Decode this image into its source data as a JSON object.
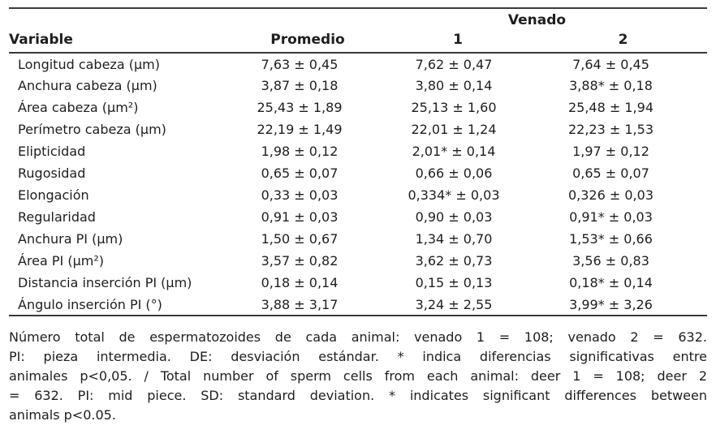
{
  "table": {
    "group_header": "Venado",
    "columns": {
      "variable": "Variable",
      "promedio": "Promedio",
      "venado1": "1",
      "venado2": "2"
    },
    "rows": [
      {
        "variable": "Longitud cabeza (μm)",
        "promedio": "7,63 ± 0,45",
        "venado1": "7,62 ± 0,47",
        "venado2": "7,64 ± 0,45"
      },
      {
        "variable": "Anchura cabeza (μm)",
        "promedio": "3,87 ± 0,18",
        "venado1": "3,80 ± 0,14",
        "venado2": "3,88* ± 0,18"
      },
      {
        "variable": "Área cabeza (μm²)",
        "promedio": "25,43 ± 1,89",
        "venado1": "25,13 ± 1,60",
        "venado2": "25,48 ± 1,94"
      },
      {
        "variable": "Perímetro cabeza (μm)",
        "promedio": "22,19 ± 1,49",
        "venado1": "22,01 ± 1,24",
        "venado2": "22,23 ± 1,53"
      },
      {
        "variable": "Elipticidad",
        "promedio": "1,98 ± 0,12",
        "venado1": "2,01* ± 0,14",
        "venado2": "1,97 ± 0,12"
      },
      {
        "variable": "Rugosidad",
        "promedio": "0,65 ± 0,07",
        "venado1": "0,66 ± 0,06",
        "venado2": "0,65 ± 0,07"
      },
      {
        "variable": "Elongación",
        "promedio": "0,33 ± 0,03",
        "venado1": "0,334* ± 0,03",
        "venado2": "0,326 ± 0,03"
      },
      {
        "variable": "Regularidad",
        "promedio": "0,91 ± 0,03",
        "venado1": "0,90 ± 0,03",
        "venado2": "0,91* ± 0,03"
      },
      {
        "variable": "Anchura PI (μm)",
        "promedio": "1,50 ± 0,67",
        "venado1": "1,34 ± 0,70",
        "venado2": "1,53* ± 0,66"
      },
      {
        "variable": "Área PI (μm²)",
        "promedio": "3,57 ± 0,82",
        "venado1": "3,62 ± 0,73",
        "venado2": "3,56 ± 0,83"
      },
      {
        "variable": "Distancia inserción PI (μm)",
        "promedio": "0,18 ± 0,14",
        "venado1": "0,15 ± 0,13",
        "venado2": "0,18* ± 0,14"
      },
      {
        "variable": "Ángulo inserción PI (°)",
        "promedio": "3,88 ± 3,17",
        "venado1": "3,24 ± 2,55",
        "venado2": "3,99* ± 3,26"
      }
    ]
  },
  "footnote": {
    "lines": [
      "Número total de espermatozoides de cada animal: venado 1 = 108; venado 2 = 632.",
      "PI: pieza intermedia. DE: desviación estándar. * indica diferencias significativas entre",
      "animales p<0,05. / Total number of sperm cells from each animal: deer 1 = 108; deer 2",
      "= 632. PI: mid piece. SD: standard deviation. * indicates significant differences between",
      "animals p<0.05."
    ]
  },
  "colors": {
    "text": "#1e1e1e",
    "rule": "#3a3a3a",
    "background": "#ffffff"
  }
}
